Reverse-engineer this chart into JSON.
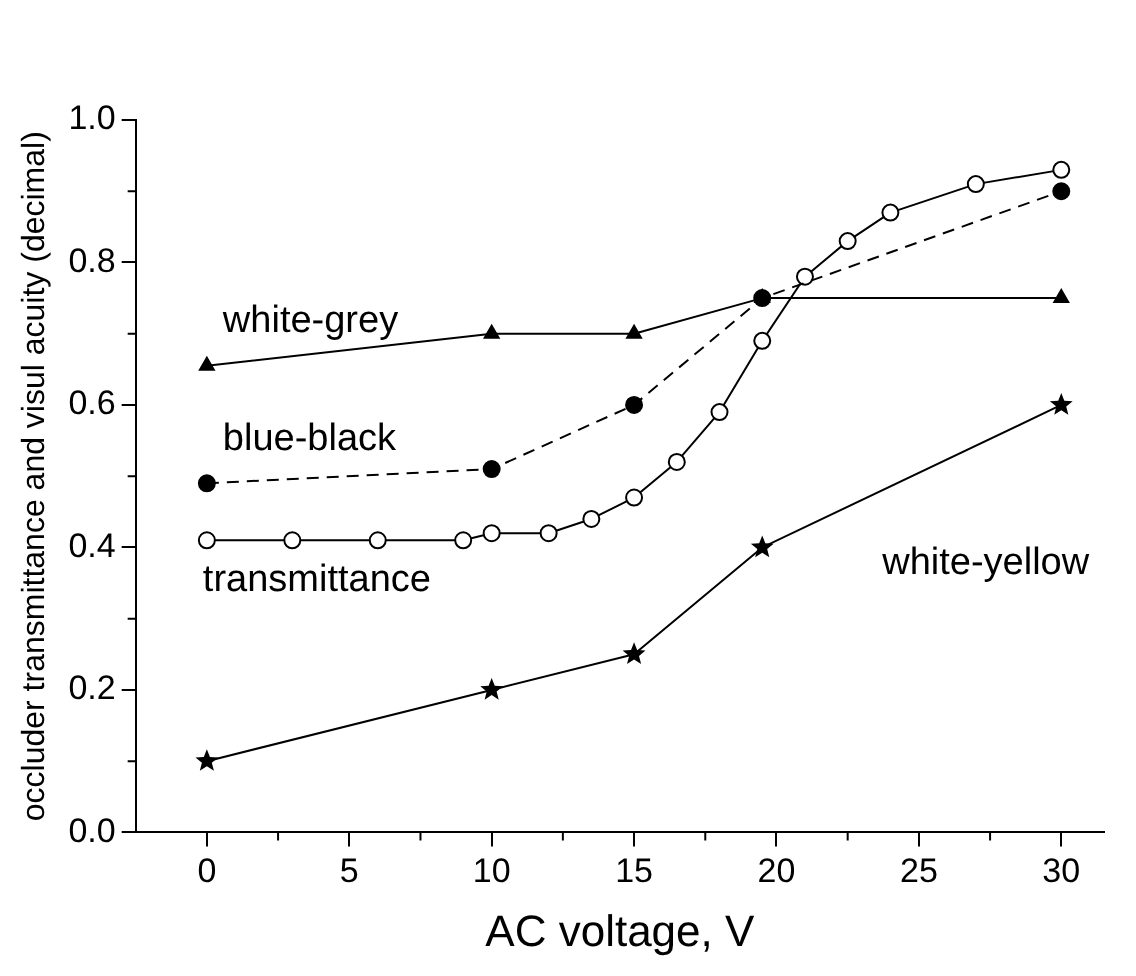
{
  "chart_data": {
    "type": "line",
    "xlabel": "AC voltage, V",
    "ylabel": "occluder transmittance and visul acuity (decimal)",
    "xlim": [
      -2.5,
      31.5
    ],
    "xticks": [
      0,
      5,
      10,
      15,
      20,
      25,
      30
    ],
    "ylim": [
      0,
      1
    ],
    "yticks": [
      {
        "value": 0,
        "label": "0.0"
      },
      {
        "value": 0.2,
        "label": "0.2"
      },
      {
        "value": 0.4,
        "label": "0.4"
      },
      {
        "value": 0.6,
        "label": "0.6"
      },
      {
        "value": 0.8,
        "label": "0.8"
      },
      {
        "value": 1,
        "label": "1.0"
      }
    ],
    "grid": false,
    "legend": false,
    "series": [
      {
        "name": "white-grey",
        "color": "#000000",
        "marker": "triangle",
        "line_style": "solid",
        "x": [
          0,
          10,
          15,
          19.5,
          30
        ],
        "values": [
          0.655,
          0.7,
          0.7,
          0.75,
          0.75
        ]
      },
      {
        "name": "blue-black",
        "color": "#000000",
        "marker": "circle",
        "line_style": "dashed",
        "x": [
          0,
          10,
          15,
          19.5,
          30
        ],
        "values": [
          0.49,
          0.51,
          0.6,
          0.75,
          0.9
        ]
      },
      {
        "name": "transmittance",
        "color": "#000000",
        "marker": "circle",
        "line_style": "solid",
        "x": [
          0,
          3,
          6,
          9,
          10,
          12,
          13.5,
          15,
          16.5,
          18,
          19.5,
          21,
          22.5,
          24,
          27,
          30
        ],
        "values": [
          0.41,
          0.41,
          0.41,
          0.41,
          0.42,
          0.42,
          0.44,
          0.47,
          0.52,
          0.59,
          0.69,
          0.78,
          0.83,
          0.87,
          0.91,
          0.93
        ]
      },
      {
        "name": "white-yellow",
        "color": "#000000",
        "marker": "star",
        "line_style": "solid",
        "x": [
          0,
          10,
          15,
          19.5,
          30
        ],
        "values": [
          0.1,
          0.2,
          0.25,
          0.4,
          0.6
        ]
      }
    ]
  }
}
